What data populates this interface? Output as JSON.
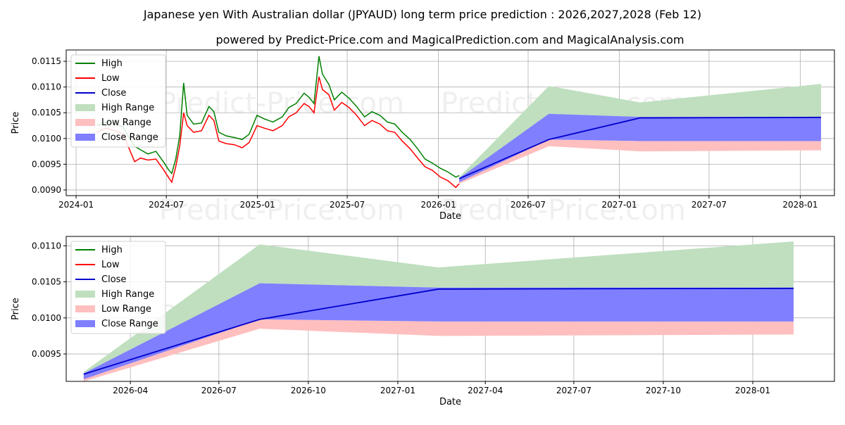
{
  "page": {
    "title": "Japanese yen With Australian dollar (JPYAUD) long term price prediction : 2026,2027,2028 (Feb 12)",
    "subtitle": "powered by Predict-Price.com and MagicalPrediction.com and MagicalAnalysis.com",
    "watermark": "Predict-Price.com"
  },
  "colors": {
    "high": "#008000",
    "low": "#ff0000",
    "close": "#0000cc",
    "high_range": "#bfdfbf",
    "low_range": "#ffbfbf",
    "close_range": "#7f7fff"
  },
  "legend": [
    {
      "label": "High",
      "kind": "line",
      "color_key": "high"
    },
    {
      "label": "Low",
      "kind": "line",
      "color_key": "low"
    },
    {
      "label": "Close",
      "kind": "line",
      "color_key": "close"
    },
    {
      "label": "High Range",
      "kind": "patch",
      "color_key": "high_range"
    },
    {
      "label": "Low Range",
      "kind": "patch",
      "color_key": "low_range"
    },
    {
      "label": "Close Range",
      "kind": "patch",
      "color_key": "close_range"
    }
  ],
  "chart_data": [
    {
      "type": "line",
      "name": "history-and-forecast",
      "xlabel": "Date",
      "ylabel": "Price",
      "xlim": [
        "2023-12-12",
        "2028-03-10"
      ],
      "ylim": [
        0.00889,
        0.01172
      ],
      "xticks": [
        {
          "date": "2024-01-01",
          "label": "2024-01"
        },
        {
          "date": "2024-07-01",
          "label": "2024-07"
        },
        {
          "date": "2025-01-01",
          "label": "2025-01"
        },
        {
          "date": "2025-07-01",
          "label": "2025-07"
        },
        {
          "date": "2026-01-01",
          "label": "2026-01"
        },
        {
          "date": "2026-07-01",
          "label": "2026-07"
        },
        {
          "date": "2027-01-01",
          "label": "2027-01"
        },
        {
          "date": "2027-07-01",
          "label": "2027-07"
        },
        {
          "date": "2028-01-01",
          "label": "2028-01"
        }
      ],
      "yticks": [
        {
          "value": 0.009,
          "label": "0.0090"
        },
        {
          "value": 0.0095,
          "label": "0.0095"
        },
        {
          "value": 0.01,
          "label": "0.0100"
        },
        {
          "value": 0.0105,
          "label": "0.0105"
        },
        {
          "value": 0.011,
          "label": "0.0110"
        },
        {
          "value": 0.0115,
          "label": "0.0115"
        }
      ],
      "history": [
        {
          "date": "2024-02-12",
          "high": 0.01025,
          "low": 0.01012
        },
        {
          "date": "2024-03-01",
          "high": 0.01032,
          "low": 0.0102
        },
        {
          "date": "2024-03-20",
          "high": 0.01028,
          "low": 0.01015
        },
        {
          "date": "2024-04-05",
          "high": 0.01022,
          "low": 0.01008
        },
        {
          "date": "2024-04-15",
          "high": 0.01005,
          "low": 0.00985
        },
        {
          "date": "2024-04-28",
          "high": 0.00985,
          "low": 0.00955
        },
        {
          "date": "2024-05-10",
          "high": 0.00978,
          "low": 0.00962
        },
        {
          "date": "2024-05-25",
          "high": 0.0097,
          "low": 0.00958
        },
        {
          "date": "2024-06-10",
          "high": 0.00975,
          "low": 0.0096
        },
        {
          "date": "2024-06-25",
          "high": 0.00955,
          "low": 0.0094
        },
        {
          "date": "2024-07-05",
          "high": 0.0094,
          "low": 0.00925
        },
        {
          "date": "2024-07-12",
          "high": 0.00932,
          "low": 0.00915
        },
        {
          "date": "2024-07-20",
          "high": 0.0096,
          "low": 0.00945
        },
        {
          "date": "2024-07-28",
          "high": 0.01005,
          "low": 0.00985
        },
        {
          "date": "2024-08-05",
          "high": 0.01108,
          "low": 0.0105
        },
        {
          "date": "2024-08-12",
          "high": 0.01045,
          "low": 0.01025
        },
        {
          "date": "2024-08-25",
          "high": 0.01028,
          "low": 0.01012
        },
        {
          "date": "2024-09-10",
          "high": 0.0103,
          "low": 0.01015
        },
        {
          "date": "2024-09-25",
          "high": 0.01062,
          "low": 0.01045
        },
        {
          "date": "2024-10-05",
          "high": 0.01052,
          "low": 0.01035
        },
        {
          "date": "2024-10-15",
          "high": 0.01012,
          "low": 0.00995
        },
        {
          "date": "2024-10-30",
          "high": 0.01005,
          "low": 0.0099
        },
        {
          "date": "2024-11-15",
          "high": 0.01002,
          "low": 0.00988
        },
        {
          "date": "2024-12-01",
          "high": 0.00998,
          "low": 0.00982
        },
        {
          "date": "2024-12-15",
          "high": 0.01008,
          "low": 0.00992
        },
        {
          "date": "2024-12-31",
          "high": 0.01045,
          "low": 0.01025
        },
        {
          "date": "2025-01-15",
          "high": 0.01038,
          "low": 0.0102
        },
        {
          "date": "2025-02-01",
          "high": 0.01032,
          "low": 0.01015
        },
        {
          "date": "2025-02-20",
          "high": 0.01042,
          "low": 0.01025
        },
        {
          "date": "2025-03-05",
          "high": 0.0106,
          "low": 0.01042
        },
        {
          "date": "2025-03-20",
          "high": 0.01068,
          "low": 0.0105
        },
        {
          "date": "2025-04-05",
          "high": 0.01088,
          "low": 0.01068
        },
        {
          "date": "2025-04-15",
          "high": 0.0108,
          "low": 0.01062
        },
        {
          "date": "2025-04-25",
          "high": 0.01068,
          "low": 0.0105
        },
        {
          "date": "2025-05-05",
          "high": 0.0116,
          "low": 0.0112
        },
        {
          "date": "2025-05-12",
          "high": 0.01125,
          "low": 0.01095
        },
        {
          "date": "2025-05-25",
          "high": 0.01105,
          "low": 0.01085
        },
        {
          "date": "2025-06-05",
          "high": 0.01075,
          "low": 0.01055
        },
        {
          "date": "2025-06-20",
          "high": 0.0109,
          "low": 0.0107
        },
        {
          "date": "2025-07-05",
          "high": 0.01078,
          "low": 0.0106
        },
        {
          "date": "2025-07-20",
          "high": 0.01062,
          "low": 0.01045
        },
        {
          "date": "2025-08-05",
          "high": 0.01042,
          "low": 0.01025
        },
        {
          "date": "2025-08-20",
          "high": 0.01052,
          "low": 0.01035
        },
        {
          "date": "2025-09-05",
          "high": 0.01045,
          "low": 0.01028
        },
        {
          "date": "2025-09-20",
          "high": 0.01032,
          "low": 0.01015
        },
        {
          "date": "2025-10-05",
          "high": 0.01028,
          "low": 0.01012
        },
        {
          "date": "2025-10-20",
          "high": 0.01012,
          "low": 0.00995
        },
        {
          "date": "2025-11-05",
          "high": 0.00998,
          "low": 0.0098
        },
        {
          "date": "2025-11-20",
          "high": 0.0098,
          "low": 0.00962
        },
        {
          "date": "2025-12-05",
          "high": 0.0096,
          "low": 0.00945
        },
        {
          "date": "2025-12-20",
          "high": 0.00952,
          "low": 0.00938
        },
        {
          "date": "2026-01-05",
          "high": 0.00942,
          "low": 0.00925
        },
        {
          "date": "2026-01-20",
          "high": 0.00935,
          "low": 0.00918
        },
        {
          "date": "2026-02-05",
          "high": 0.00925,
          "low": 0.00905
        },
        {
          "date": "2026-02-12",
          "high": 0.00928,
          "low": 0.00912
        }
      ],
      "forecast": [
        {
          "date": "2026-02-12",
          "close": 0.00922,
          "high_lo": 0.00918,
          "high_hi": 0.00925,
          "low_lo": 0.00912,
          "low_hi": 0.0092,
          "close_lo": 0.00915,
          "close_hi": 0.00923
        },
        {
          "date": "2026-08-12",
          "close": 0.00998,
          "high_lo": 0.01048,
          "high_hi": 0.01102,
          "low_lo": 0.00985,
          "low_hi": 0.00998,
          "close_lo": 0.00998,
          "close_hi": 0.01048
        },
        {
          "date": "2027-02-12",
          "close": 0.0104,
          "high_lo": 0.01042,
          "high_hi": 0.0107,
          "low_lo": 0.00975,
          "low_hi": 0.00995,
          "close_lo": 0.00995,
          "close_hi": 0.01042
        },
        {
          "date": "2028-02-12",
          "close": 0.01041,
          "high_lo": 0.01042,
          "high_hi": 0.01106,
          "low_lo": 0.00977,
          "low_hi": 0.00995,
          "close_lo": 0.00995,
          "close_hi": 0.01042
        }
      ]
    },
    {
      "type": "line",
      "name": "forecast-zoom",
      "xlabel": "Date",
      "ylabel": "Price",
      "xlim": [
        "2026-01-25",
        "2028-03-25"
      ],
      "ylim": [
        0.00912,
        0.01113
      ],
      "xticks": [
        {
          "date": "2026-04-01",
          "label": "2026-04"
        },
        {
          "date": "2026-07-01",
          "label": "2026-07"
        },
        {
          "date": "2026-10-01",
          "label": "2026-10"
        },
        {
          "date": "2027-01-01",
          "label": "2027-01"
        },
        {
          "date": "2027-04-01",
          "label": "2027-04"
        },
        {
          "date": "2027-07-01",
          "label": "2027-07"
        },
        {
          "date": "2027-10-01",
          "label": "2027-10"
        },
        {
          "date": "2028-01-01",
          "label": "2028-01"
        }
      ],
      "yticks": [
        {
          "value": 0.0095,
          "label": "0.0095"
        },
        {
          "value": 0.01,
          "label": "0.0100"
        },
        {
          "value": 0.0105,
          "label": "0.0105"
        },
        {
          "value": 0.011,
          "label": "0.0110"
        }
      ],
      "forecast_ref": "history-and-forecast"
    }
  ]
}
